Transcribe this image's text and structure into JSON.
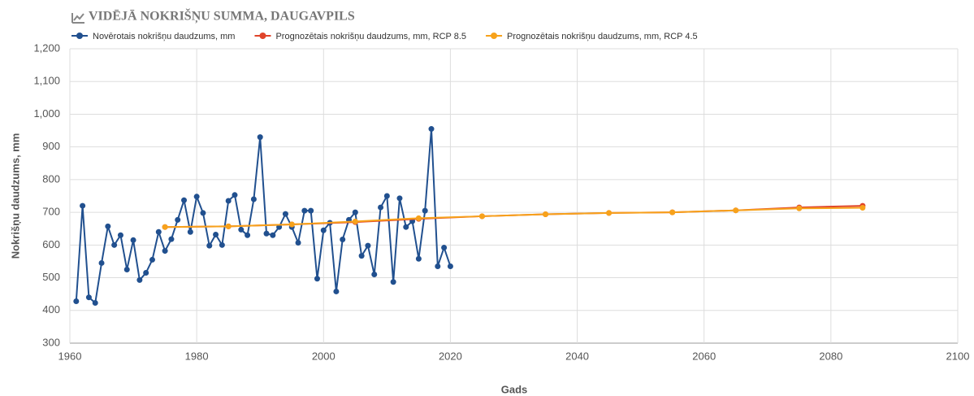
{
  "chart_data": {
    "type": "line",
    "title": "VIDĒJĀ NOKRIŠŅU SUMMA, DAUGAVPILS",
    "x_label": "Gads",
    "y_label": "Nokrišņu daudzums, mm",
    "xlim": [
      1960,
      2100
    ],
    "xticks": [
      1960,
      1980,
      2000,
      2020,
      2040,
      2060,
      2080,
      2100
    ],
    "ylim": [
      300,
      1200
    ],
    "yticks": [
      300,
      400,
      500,
      600,
      700,
      800,
      900,
      {
        "value": 1000,
        "label": "1,000"
      },
      {
        "value": 1100,
        "label": "1,100"
      },
      {
        "value": 1200,
        "label": "1,200"
      }
    ],
    "grid": true,
    "legend": "top",
    "series": [
      {
        "name": "Novērotais nokrišņu daudzums, mm",
        "color": "#21508f",
        "x": [
          1961,
          1962,
          1963,
          1964,
          1965,
          1966,
          1967,
          1968,
          1969,
          1970,
          1971,
          1972,
          1973,
          1974,
          1975,
          1976,
          1977,
          1978,
          1979,
          1980,
          1981,
          1982,
          1983,
          1984,
          1985,
          1986,
          1987,
          1988,
          1989,
          1990,
          1991,
          1992,
          1993,
          1994,
          1995,
          1996,
          1997,
          1998,
          1999,
          2000,
          2001,
          2002,
          2003,
          2004,
          2005,
          2006,
          2007,
          2008,
          2009,
          2010,
          2011,
          2012,
          2013,
          2014,
          2015,
          2016,
          2017,
          2018,
          2019,
          2020
        ],
        "values": [
          428,
          720,
          440,
          423,
          545,
          657,
          600,
          630,
          525,
          615,
          493,
          515,
          555,
          640,
          582,
          618,
          677,
          737,
          640,
          748,
          698,
          598,
          632,
          600,
          735,
          753,
          647,
          630,
          740,
          930,
          635,
          630,
          655,
          695,
          655,
          607,
          705,
          705,
          497,
          645,
          668,
          458,
          617,
          677,
          700,
          567,
          598,
          510,
          715,
          750,
          487,
          743,
          655,
          673,
          558,
          705,
          955,
          535,
          592,
          535
        ]
      },
      {
        "name": "Prognozētais nokrišņu daudzums, mm, RCP 8.5",
        "color": "#e0442a",
        "x": [
          1975,
          1985,
          1995,
          2005,
          2015,
          2025,
          2035,
          2045,
          2055,
          2065,
          2075,
          2085
        ],
        "values": [
          655,
          657,
          663,
          670,
          680,
          688,
          694,
          698,
          700,
          706,
          715,
          720
        ]
      },
      {
        "name": "Prognozētais nokrišņu daudzums, mm, RCP 4.5",
        "color": "#f7a21b",
        "x": [
          1975,
          1985,
          1995,
          2005,
          2015,
          2025,
          2035,
          2045,
          2055,
          2065,
          2075,
          2085
        ],
        "values": [
          655,
          657,
          663,
          672,
          682,
          688,
          694,
          698,
          700,
          706,
          712,
          714
        ]
      }
    ]
  }
}
